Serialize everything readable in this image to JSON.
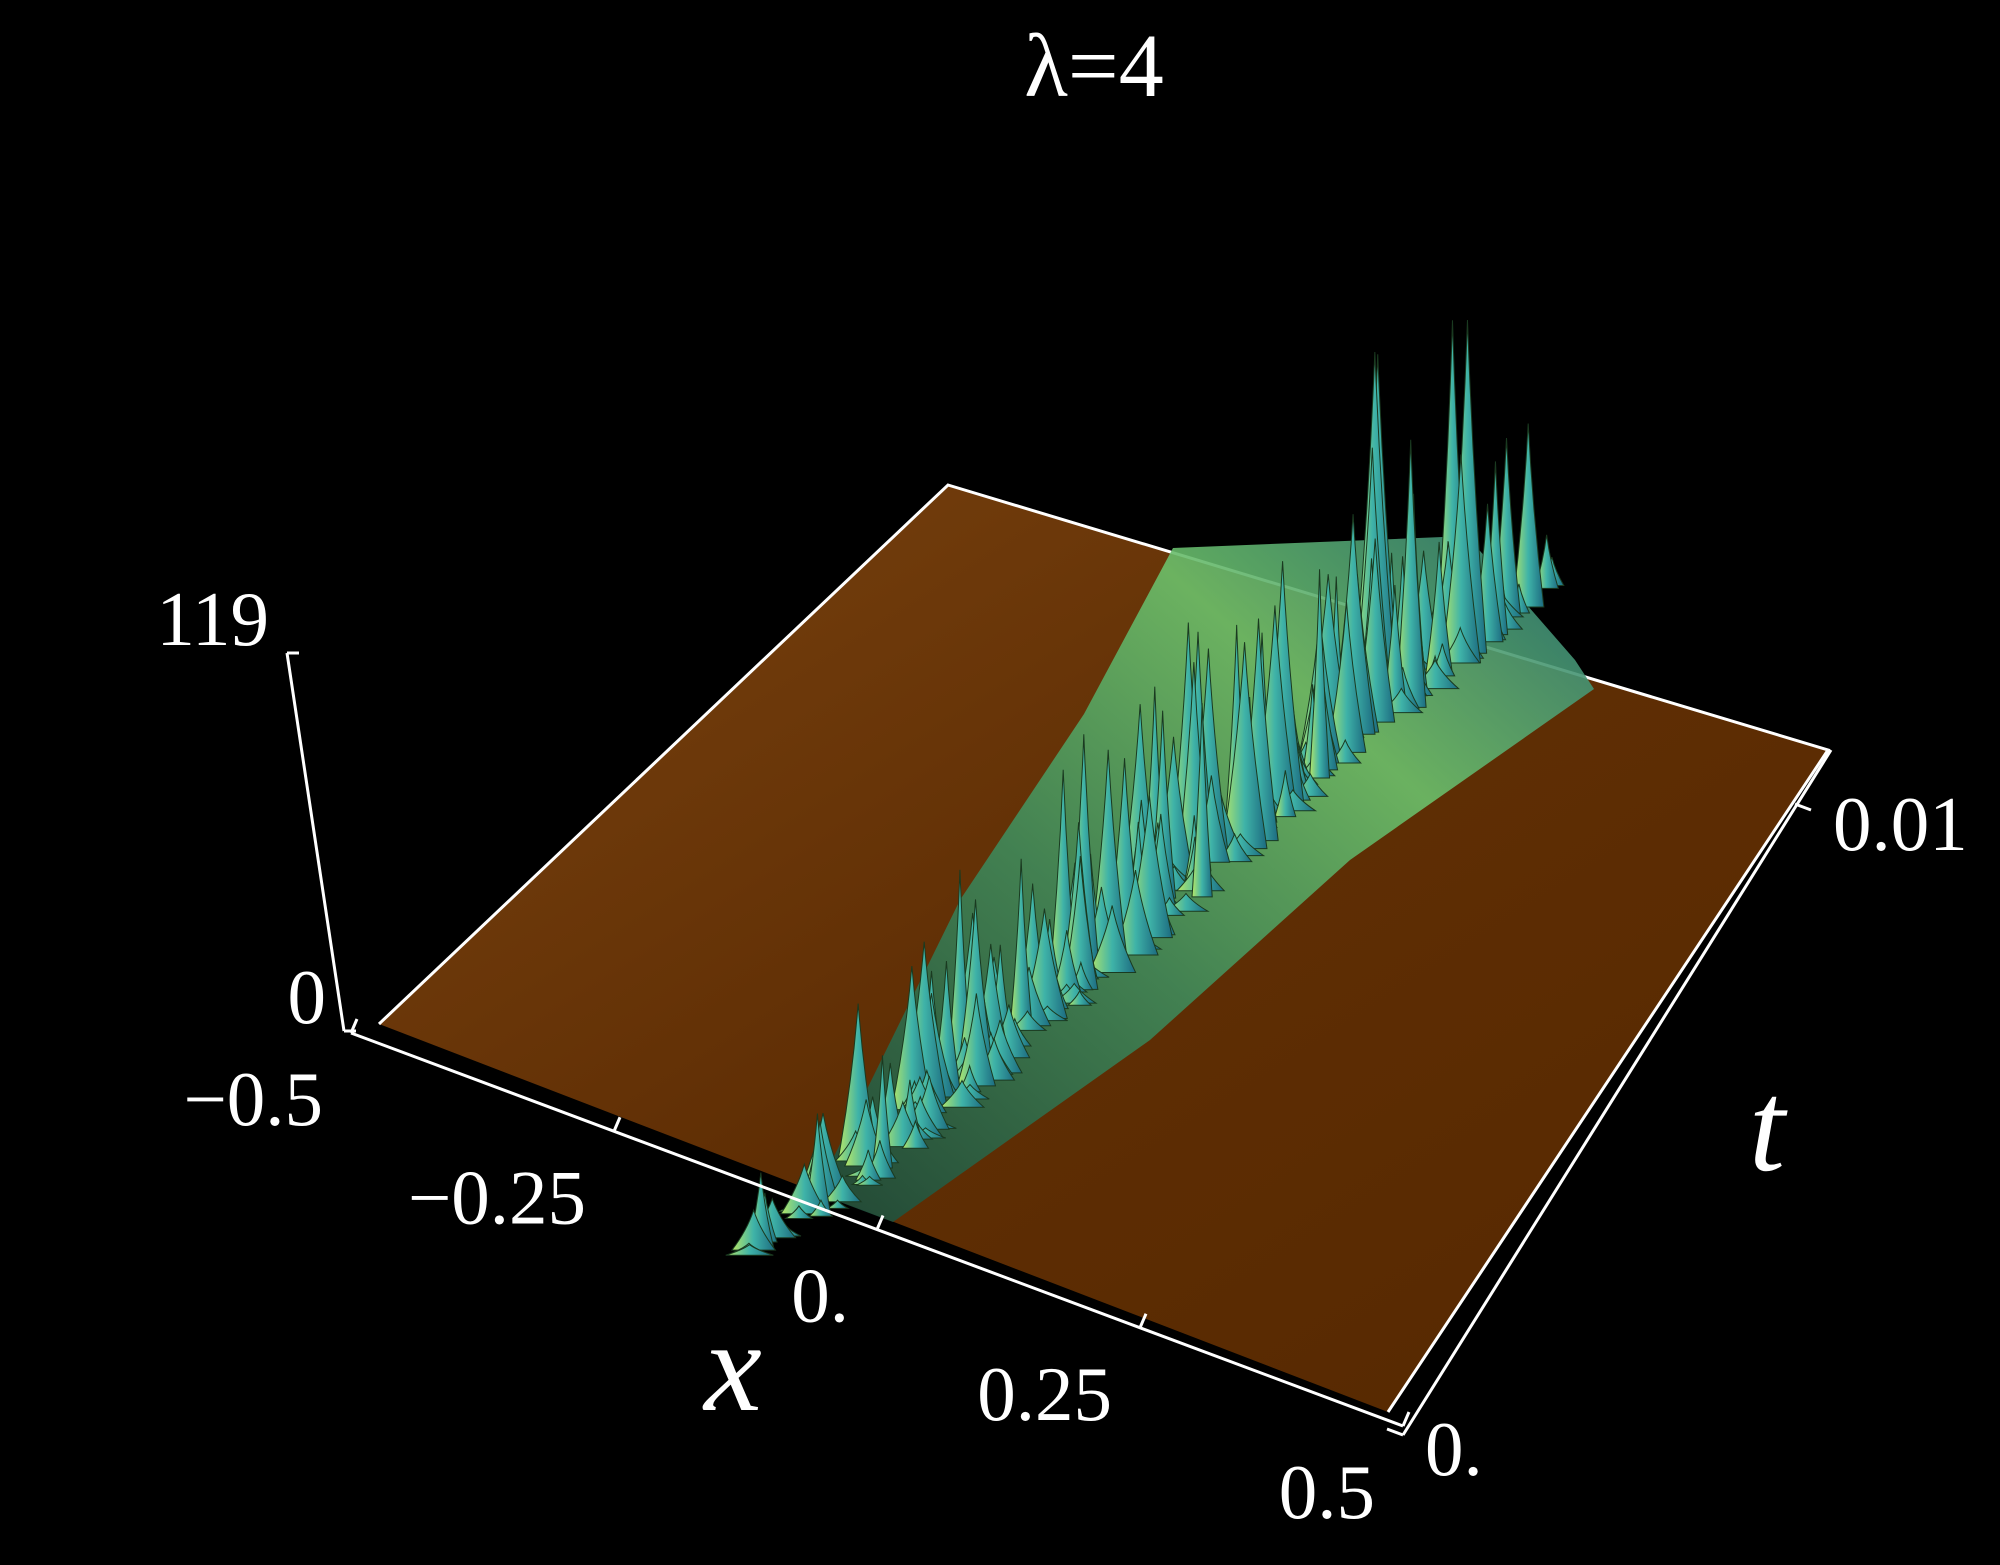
{
  "chart_data": {
    "type": "surface",
    "title": "λ=4",
    "x_label": "x",
    "y_label": "t",
    "xlim": [
      -0.5,
      0.5
    ],
    "xticks": [
      {
        "value": -0.5,
        "label": "−0.5"
      },
      {
        "value": -0.25,
        "label": "−0.25"
      },
      {
        "value": 0,
        "label": "0."
      },
      0.25,
      0.5
    ],
    "ylim": [
      0,
      0.01
    ],
    "yticks": [
      {
        "value": 0,
        "label": "0."
      },
      0.01
    ],
    "zlim": [
      0,
      119
    ],
    "zticks": [
      0,
      119
    ]
  }
}
